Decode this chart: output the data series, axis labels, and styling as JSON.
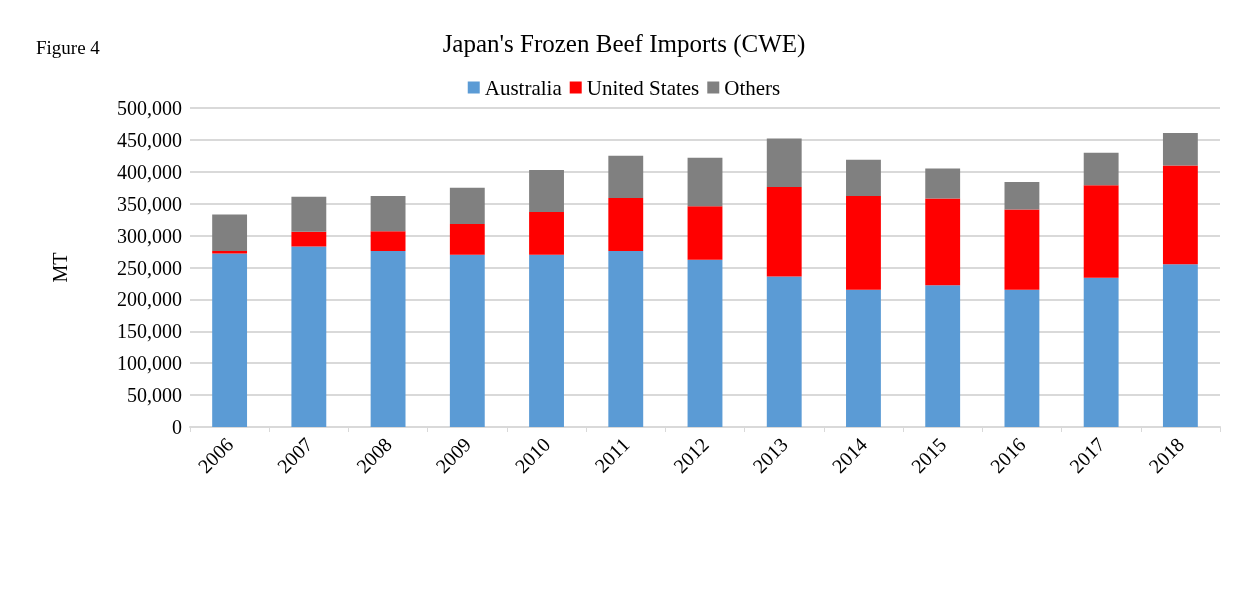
{
  "chart_data": {
    "type": "bar",
    "title": "Japan's Frozen Beef Imports (CWE)",
    "annotations": [
      "Figure 4"
    ],
    "ylabel": "MT",
    "categories": [
      "2006",
      "2007",
      "2008",
      "2009",
      "2010",
      "2011",
      "2012",
      "2013",
      "2014",
      "2015",
      "2016",
      "2017",
      "2018"
    ],
    "stacked": true,
    "series": [
      {
        "name": "Australia",
        "color": "#5b9bd5",
        "values": [
          272000,
          283000,
          276000,
          270000,
          270000,
          276000,
          262000,
          236000,
          215000,
          222000,
          215000,
          234000,
          255000
        ]
      },
      {
        "name": "United States",
        "color": "#ff0000",
        "values": [
          4000,
          23000,
          31000,
          48000,
          67000,
          83000,
          84000,
          140000,
          147000,
          136000,
          126000,
          145000,
          155000
        ]
      },
      {
        "name": "Others",
        "color": "#808080",
        "values": [
          57000,
          55000,
          55000,
          57000,
          66000,
          66000,
          76000,
          76000,
          57000,
          47000,
          43000,
          51000,
          51000
        ]
      }
    ],
    "ylim": [
      0,
      500000
    ],
    "yticks": [
      0,
      {
        "value": 50000,
        "label": "50,000"
      },
      {
        "value": 100000,
        "label": "100,000"
      },
      {
        "value": 150000,
        "label": "150,000"
      },
      {
        "value": 200000,
        "label": "200,000"
      },
      {
        "value": 250000,
        "label": "250,000"
      },
      {
        "value": 300000,
        "label": "300,000"
      },
      {
        "value": 350000,
        "label": "350,000"
      },
      {
        "value": 400000,
        "label": "400,000"
      },
      {
        "value": 450000,
        "label": "450,000"
      },
      {
        "value": 500000,
        "label": "500,000"
      }
    ],
    "grid": "y",
    "legend": "top"
  }
}
